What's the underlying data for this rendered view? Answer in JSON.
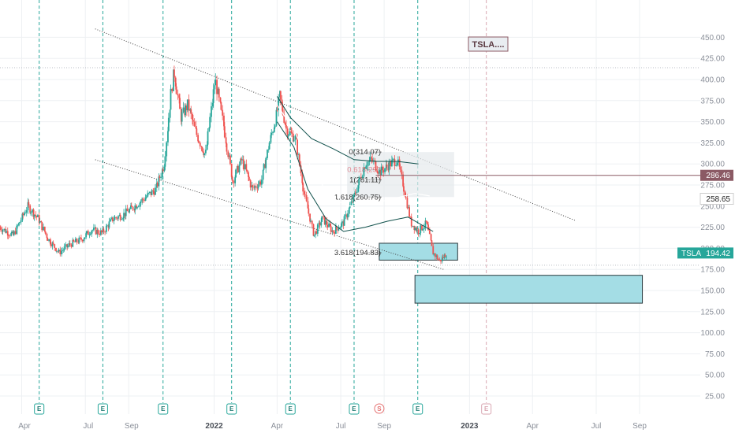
{
  "colors": {
    "up_candle": "#26a69a",
    "down_candle": "#ef5350",
    "earnings_line": "#26a69a",
    "zone_fill": "#a4dde5",
    "current_price_tag": "#26a69a",
    "resistance_tag": "#8b5a64"
  },
  "symbol_label": "TSLA....",
  "price_tags": {
    "resistance": "286.46",
    "level": "258.65",
    "symbol": "TSLA",
    "current": "194.42"
  },
  "fib_labels": [
    "0(314.07)",
    "0.618(293",
    "1(281.11)",
    "1.618(260.75)",
    "3.618(194.83)"
  ],
  "time_ticks": [
    "Apr",
    "Jul",
    "Sep",
    "2022",
    "Apr",
    "Jul",
    "Sep",
    "2023",
    "Apr",
    "Jul",
    "Sep"
  ],
  "price_ticks": [
    "25.00",
    "50.00",
    "75.00",
    "100.00",
    "125.00",
    "150.00",
    "175.00",
    "200.00",
    "225.00",
    "250.00",
    "275.00",
    "300.00",
    "325.00",
    "350.00",
    "375.00",
    "400.00",
    "425.00",
    "450.00"
  ],
  "event_markers": [
    "E",
    "E",
    "E",
    "E",
    "E",
    "E",
    "S",
    "E",
    "E"
  ],
  "chart_data": {
    "type": "candlestick",
    "symbol": "TSLA",
    "x_axis_ticks": [
      "Apr",
      "Jul",
      "Sep",
      "2022",
      "Apr",
      "Jul",
      "Sep",
      "2023",
      "Apr",
      "Jul",
      "Sep"
    ],
    "ylim": [
      15,
      470
    ],
    "grid": true,
    "close_path": [
      [
        "2021-03-01",
        225
      ],
      [
        "2021-03-20",
        215
      ],
      [
        "2021-04-10",
        250
      ],
      [
        "2021-04-25",
        235
      ],
      [
        "2021-05-10",
        210
      ],
      [
        "2021-05-25",
        195
      ],
      [
        "2021-06-10",
        205
      ],
      [
        "2021-06-25",
        210
      ],
      [
        "2021-07-10",
        222
      ],
      [
        "2021-07-25",
        218
      ],
      [
        "2021-08-10",
        235
      ],
      [
        "2021-08-25",
        240
      ],
      [
        "2021-09-10",
        250
      ],
      [
        "2021-09-25",
        260
      ],
      [
        "2021-10-10",
        270
      ],
      [
        "2021-10-22",
        300
      ],
      [
        "2021-11-01",
        385
      ],
      [
        "2021-11-05",
        410
      ],
      [
        "2021-11-15",
        355
      ],
      [
        "2021-11-25",
        370
      ],
      [
        "2021-12-05",
        340
      ],
      [
        "2021-12-20",
        310
      ],
      [
        "2022-01-03",
        400
      ],
      [
        "2022-01-15",
        345
      ],
      [
        "2022-01-28",
        280
      ],
      [
        "2022-02-10",
        305
      ],
      [
        "2022-02-25",
        270
      ],
      [
        "2022-03-10",
        280
      ],
      [
        "2022-03-20",
        320
      ],
      [
        "2022-04-01",
        360
      ],
      [
        "2022-04-05",
        380
      ],
      [
        "2022-04-15",
        340
      ],
      [
        "2022-04-28",
        330
      ],
      [
        "2022-05-10",
        265
      ],
      [
        "2022-05-24",
        215
      ],
      [
        "2022-06-05",
        235
      ],
      [
        "2022-06-20",
        220
      ],
      [
        "2022-07-05",
        230
      ],
      [
        "2022-07-20",
        260
      ],
      [
        "2022-08-05",
        300
      ],
      [
        "2022-08-15",
        305
      ],
      [
        "2022-08-26",
        290
      ],
      [
        "2022-09-10",
        300
      ],
      [
        "2022-09-20",
        305
      ],
      [
        "2022-09-30",
        270
      ],
      [
        "2022-10-10",
        230
      ],
      [
        "2022-10-20",
        220
      ],
      [
        "2022-11-01",
        230
      ],
      [
        "2022-11-10",
        195
      ],
      [
        "2022-11-20",
        185
      ],
      [
        "2022-11-30",
        194.42
      ]
    ],
    "levels": {
      "resistance": 286.46,
      "marked": 258.65,
      "current": 194.42
    },
    "fibonacci": [
      {
        "label": "0",
        "value": 314.07
      },
      {
        "label": "0.618",
        "value": 293
      },
      {
        "label": "1",
        "value": 281.11
      },
      {
        "label": "1.618",
        "value": 260.75
      },
      {
        "label": "3.618",
        "value": 194.83
      }
    ],
    "zones": [
      {
        "from_date": "2022-08-25",
        "to_date": "2022-12-15",
        "low": 186,
        "high": 206
      },
      {
        "from_date": "2022-10-15",
        "to_date": "2023-09-05",
        "low": 135,
        "high": 168
      }
    ],
    "earnings_dates": [
      "2021-04-26",
      "2021-07-26",
      "2021-10-20",
      "2022-01-26",
      "2022-04-20",
      "2022-07-20",
      "2022-10-19"
    ],
    "split_date": "2022-08-25",
    "future_earnings_date": "2023-01-25"
  }
}
